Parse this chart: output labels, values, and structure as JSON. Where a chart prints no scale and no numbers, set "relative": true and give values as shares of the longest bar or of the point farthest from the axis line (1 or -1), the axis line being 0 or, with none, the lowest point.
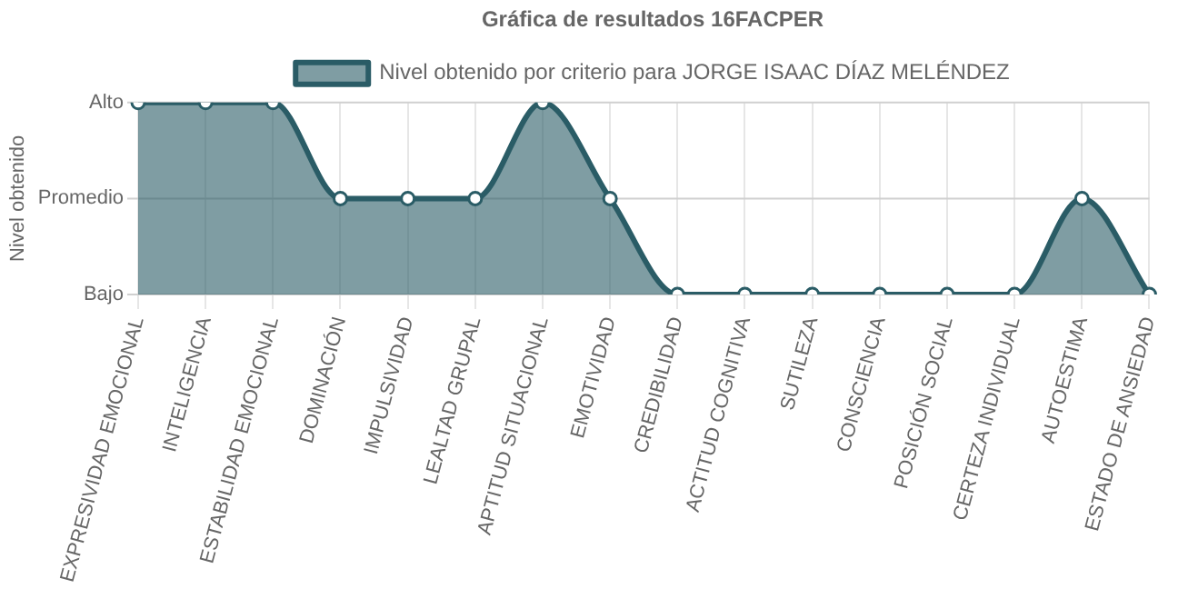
{
  "chart_data": {
    "type": "area",
    "title": "Gráfica de resultados 16FACPER",
    "ylabel": "Nivel obtenido",
    "relative": true,
    "categories": [
      "EXPRESIVIDAD EMOCIONAL",
      "INTELIGENCIA",
      "ESTABILIDAD EMOCIONAL",
      "DOMINACIÓN",
      "IMPULSIVIDAD",
      "LEALTAD GRUPAL",
      "APTITUD SITUACIONAL",
      "EMOTIVIDAD",
      "CREDIBILIDAD",
      "ACTITUD COGNITIVA",
      "SUTILEZA",
      "CONSCIENCIA",
      "POSICIÓN SOCIAL",
      "CERTEZA INDIVIDUAL",
      "AUTOESTIMA",
      "ESTADO DE ANSIEDAD"
    ],
    "series": [
      {
        "name": "Nivel obtenido por criterio para JORGE ISAAC DÍAZ MELÉNDEZ",
        "color": "#2a5c66",
        "values": [
          1,
          1,
          1,
          0.5,
          0.5,
          0.5,
          1,
          0.5,
          0,
          0,
          0,
          0,
          0,
          0,
          0.5,
          0
        ]
      }
    ],
    "ref_lines": [
      {
        "axis": "y",
        "value": 1,
        "label": "Alto",
        "color": "#d0d0d0"
      },
      {
        "axis": "y",
        "value": 0.5,
        "label": "Promedio",
        "color": "#d0d0d0"
      },
      {
        "axis": "y",
        "value": 0,
        "label": "Bajo",
        "color": "#d0d0d0"
      }
    ],
    "grid": "x",
    "legend": "top",
    "marker": "circle"
  }
}
